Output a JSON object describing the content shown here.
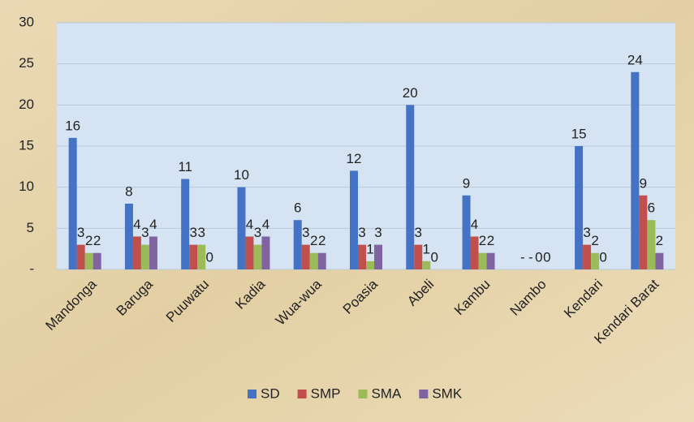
{
  "chart_data": {
    "type": "bar",
    "categories": [
      "Mandonga",
      "Baruga",
      "Puuwatu",
      "Kadia",
      "Wua-wua",
      "Poasia",
      "Abeli",
      "Kambu",
      "Nambo",
      "Kendari",
      "Kendari Barat"
    ],
    "series": [
      {
        "name": "SD",
        "color": "#4472c4",
        "values": [
          16,
          8,
          11,
          10,
          6,
          12,
          20,
          9,
          0,
          15,
          24
        ],
        "value_labels": [
          "16",
          "8",
          "11",
          "10",
          "6",
          "12",
          "20",
          "9",
          "-",
          "15",
          "24"
        ]
      },
      {
        "name": "SMP",
        "color": "#c0504d",
        "values": [
          3,
          4,
          3,
          4,
          3,
          3,
          3,
          4,
          0,
          3,
          9
        ],
        "value_labels": [
          "3",
          "4",
          "3",
          "4",
          "3",
          "3",
          "3",
          "4",
          "-",
          "3",
          "9"
        ]
      },
      {
        "name": "SMA",
        "color": "#9bbb59",
        "values": [
          2,
          3,
          3,
          3,
          2,
          1,
          1,
          2,
          0,
          2,
          6
        ],
        "value_labels": [
          "2",
          "3",
          "3",
          "3",
          "2",
          "1",
          "1",
          "2",
          "0",
          "2",
          "6"
        ]
      },
      {
        "name": "SMK",
        "color": "#8064a2",
        "values": [
          2,
          4,
          0,
          4,
          2,
          3,
          0,
          2,
          0,
          0,
          2
        ],
        "value_labels": [
          "2",
          "4",
          "0",
          "4",
          "2",
          "3",
          "0",
          "2",
          "0",
          "0",
          "2"
        ]
      }
    ],
    "ylim": [
      0,
      30
    ],
    "yticks": [
      {
        "value": 0,
        "label": "-"
      },
      5,
      10,
      15,
      20,
      25,
      30
    ],
    "grid": true,
    "legend": "bottom"
  }
}
